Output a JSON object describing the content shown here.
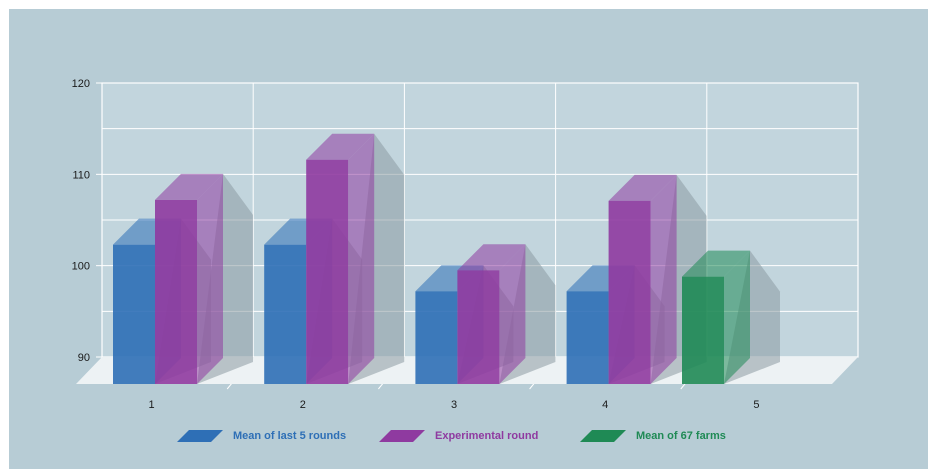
{
  "chart_data": {
    "type": "bar",
    "categories": [
      "1",
      "2",
      "3",
      "4",
      "5"
    ],
    "yticks": [
      90,
      100,
      110,
      120
    ],
    "ylim": [
      90,
      120
    ],
    "series": [
      {
        "name": "Mean of last 5 rounds",
        "color": "#2e6fb6",
        "values": [
          102.3,
          102.3,
          97.2,
          97.2,
          null
        ]
      },
      {
        "name": "Experimental round",
        "color": "#8f3aa0",
        "values": [
          107.2,
          111.6,
          99.5,
          107.1,
          null
        ]
      },
      {
        "name": "Mean of 67 farms",
        "color": "#1f8a55",
        "values": [
          null,
          null,
          null,
          null,
          98.8
        ]
      }
    ],
    "grid": true,
    "legend_position": "bottom"
  }
}
